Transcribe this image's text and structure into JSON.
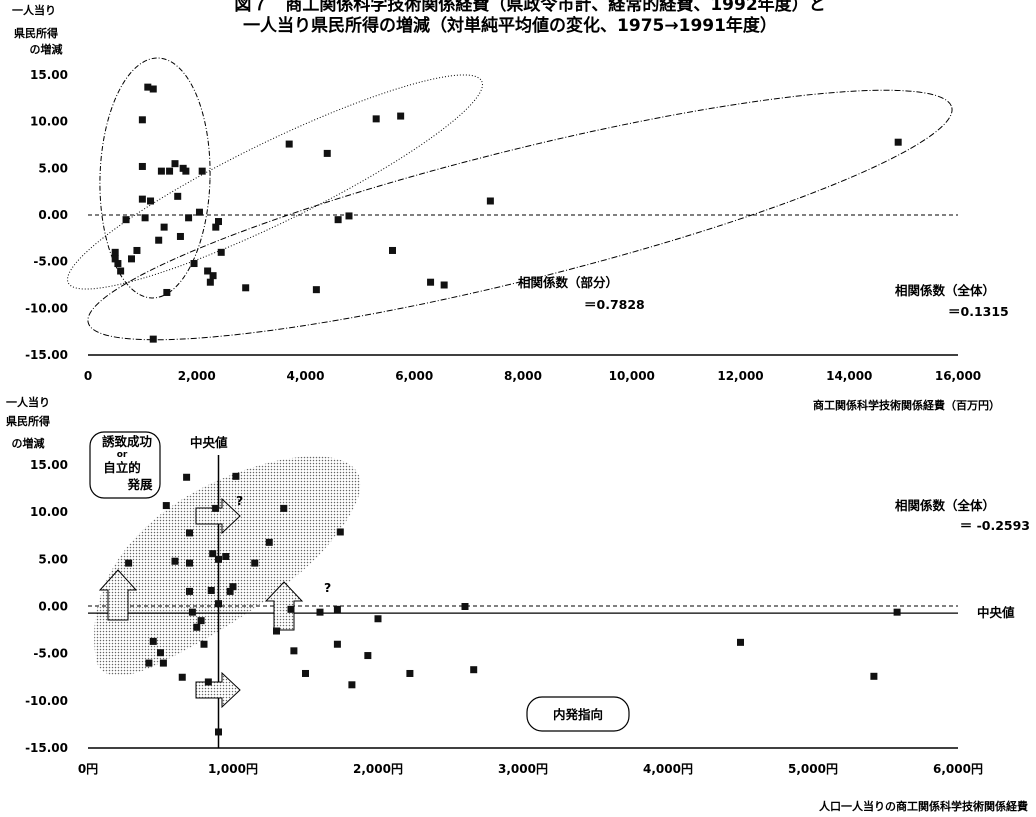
{
  "title": {
    "line1": "図７　商工関係科学技術関係経費（県政令市計、経常的経費、1992年度）と",
    "line2": "一人当り県民所得の増減（対単純平均値の変化、1975→1991年度）"
  },
  "chart_data": [
    {
      "type": "scatter",
      "ylabel": [
        "一人当り",
        "県民所得",
        "の増減"
      ],
      "xlabel": "商工関係科学技術関係経費（百万円）",
      "xlim": [
        0,
        16000
      ],
      "ylim": [
        -15,
        15
      ],
      "xticks": [
        "0",
        "2,000",
        "4,000",
        "6,000",
        "8,000",
        "10,000",
        "12,000",
        "14,000",
        "16,000"
      ],
      "yticks": [
        "15.00",
        "10.00",
        "5.00",
        "0.00",
        "-5.00",
        "-10.00",
        "-15.00"
      ],
      "reference_line_y": 0,
      "points": [
        {
          "x": 500,
          "y": -4.0
        },
        {
          "x": 500,
          "y": -4.7
        },
        {
          "x": 550,
          "y": -5.2
        },
        {
          "x": 600,
          "y": -6.0
        },
        {
          "x": 700,
          "y": -0.5
        },
        {
          "x": 800,
          "y": -4.7
        },
        {
          "x": 900,
          "y": -3.8
        },
        {
          "x": 1000,
          "y": 1.7
        },
        {
          "x": 1000,
          "y": 10.2
        },
        {
          "x": 1000,
          "y": 5.2
        },
        {
          "x": 1050,
          "y": -0.3
        },
        {
          "x": 1100,
          "y": 13.7
        },
        {
          "x": 1150,
          "y": 1.5
        },
        {
          "x": 1200,
          "y": 13.5
        },
        {
          "x": 1200,
          "y": -13.3
        },
        {
          "x": 1300,
          "y": -2.7
        },
        {
          "x": 1350,
          "y": 4.7
        },
        {
          "x": 1400,
          "y": -1.3
        },
        {
          "x": 1450,
          "y": -8.3
        },
        {
          "x": 1500,
          "y": 4.7
        },
        {
          "x": 1600,
          "y": 5.5
        },
        {
          "x": 1650,
          "y": 2.0
        },
        {
          "x": 1700,
          "y": -2.3
        },
        {
          "x": 1750,
          "y": 5.0
        },
        {
          "x": 1800,
          "y": 4.7
        },
        {
          "x": 1850,
          "y": -0.3
        },
        {
          "x": 1950,
          "y": -5.2
        },
        {
          "x": 2050,
          "y": 0.3
        },
        {
          "x": 2100,
          "y": 4.7
        },
        {
          "x": 2200,
          "y": -6.0
        },
        {
          "x": 2250,
          "y": -7.2
        },
        {
          "x": 2300,
          "y": -6.5
        },
        {
          "x": 2350,
          "y": -1.3
        },
        {
          "x": 2400,
          "y": -0.7
        },
        {
          "x": 2450,
          "y": -4.0
        },
        {
          "x": 2900,
          "y": -7.8
        },
        {
          "x": 3700,
          "y": 7.6
        },
        {
          "x": 4200,
          "y": -8.0
        },
        {
          "x": 4400,
          "y": 6.6
        },
        {
          "x": 4600,
          "y": -0.5
        },
        {
          "x": 4800,
          "y": -0.1
        },
        {
          "x": 5300,
          "y": 10.3
        },
        {
          "x": 5600,
          "y": -3.8
        },
        {
          "x": 5750,
          "y": 10.6
        },
        {
          "x": 6300,
          "y": -7.2
        },
        {
          "x": 6550,
          "y": -7.5
        },
        {
          "x": 7400,
          "y": 1.5
        },
        {
          "x": 14900,
          "y": 7.8
        }
      ],
      "annotations": {
        "partial_label": "相関係数（部分）",
        "partial_value": "＝0.7828",
        "total_label": "相関係数（全体）",
        "total_value": "＝0.1315"
      }
    },
    {
      "type": "scatter",
      "ylabel": [
        "一人当り",
        "県民所得",
        "の増減"
      ],
      "xlabel": "人口一人当りの商工関係科学技術関係経費",
      "xlim": [
        0,
        6000
      ],
      "ylim": [
        -15,
        15
      ],
      "xticks": [
        "0円",
        "1,000円",
        "2,000円",
        "3,000円",
        "4,000円",
        "5,000円",
        "6,000円"
      ],
      "yticks": [
        "15.00",
        "10.00",
        "5.00",
        "0.00",
        "-5.00",
        "-10.00",
        "-15.00"
      ],
      "reference_line_y": 0,
      "median_x": 900,
      "median_y": -0.7,
      "points": [
        {
          "x": 280,
          "y": 4.6
        },
        {
          "x": 420,
          "y": -6.0
        },
        {
          "x": 450,
          "y": -3.7
        },
        {
          "x": 500,
          "y": -4.9
        },
        {
          "x": 520,
          "y": -6.0
        },
        {
          "x": 540,
          "y": 10.7
        },
        {
          "x": 600,
          "y": 4.8
        },
        {
          "x": 650,
          "y": -7.5
        },
        {
          "x": 680,
          "y": 13.7
        },
        {
          "x": 700,
          "y": 7.8
        },
        {
          "x": 700,
          "y": 1.6
        },
        {
          "x": 700,
          "y": 4.6
        },
        {
          "x": 720,
          "y": -0.6
        },
        {
          "x": 750,
          "y": -2.2
        },
        {
          "x": 780,
          "y": -1.5
        },
        {
          "x": 800,
          "y": -4.0
        },
        {
          "x": 830,
          "y": -8.0
        },
        {
          "x": 850,
          "y": 1.7
        },
        {
          "x": 860,
          "y": 5.6
        },
        {
          "x": 880,
          "y": 10.4
        },
        {
          "x": 900,
          "y": 5.0
        },
        {
          "x": 900,
          "y": 0.3
        },
        {
          "x": 900,
          "y": -13.3
        },
        {
          "x": 950,
          "y": 5.3
        },
        {
          "x": 980,
          "y": 1.6
        },
        {
          "x": 1000,
          "y": 2.1
        },
        {
          "x": 1020,
          "y": 13.8
        },
        {
          "x": 1150,
          "y": 4.6
        },
        {
          "x": 1250,
          "y": 6.8
        },
        {
          "x": 1300,
          "y": -2.6
        },
        {
          "x": 1350,
          "y": 10.4
        },
        {
          "x": 1400,
          "y": -0.3
        },
        {
          "x": 1420,
          "y": -4.7
        },
        {
          "x": 1500,
          "y": -7.1
        },
        {
          "x": 1600,
          "y": -0.6
        },
        {
          "x": 1720,
          "y": -0.3
        },
        {
          "x": 1720,
          "y": -4.0
        },
        {
          "x": 1740,
          "y": 7.9
        },
        {
          "x": 1820,
          "y": -8.3
        },
        {
          "x": 1930,
          "y": -5.2
        },
        {
          "x": 2000,
          "y": -1.3
        },
        {
          "x": 2220,
          "y": -7.1
        },
        {
          "x": 2600,
          "y": 0.0
        },
        {
          "x": 2660,
          "y": -6.7
        },
        {
          "x": 4500,
          "y": -3.8
        },
        {
          "x": 5420,
          "y": -7.4
        },
        {
          "x": 5580,
          "y": -0.6
        }
      ],
      "annotations": {
        "median_label_x": "中央値",
        "median_label_y": "中央値",
        "box_top_line1": "誘致成功",
        "box_top_line2": "or",
        "box_top_line3": "自立的",
        "box_top_line4": "発展",
        "box_bottom": "内発指向",
        "question_mark": "?",
        "total_label": "相関係数（全体）",
        "total_value": "＝ -0.2593"
      }
    }
  ]
}
